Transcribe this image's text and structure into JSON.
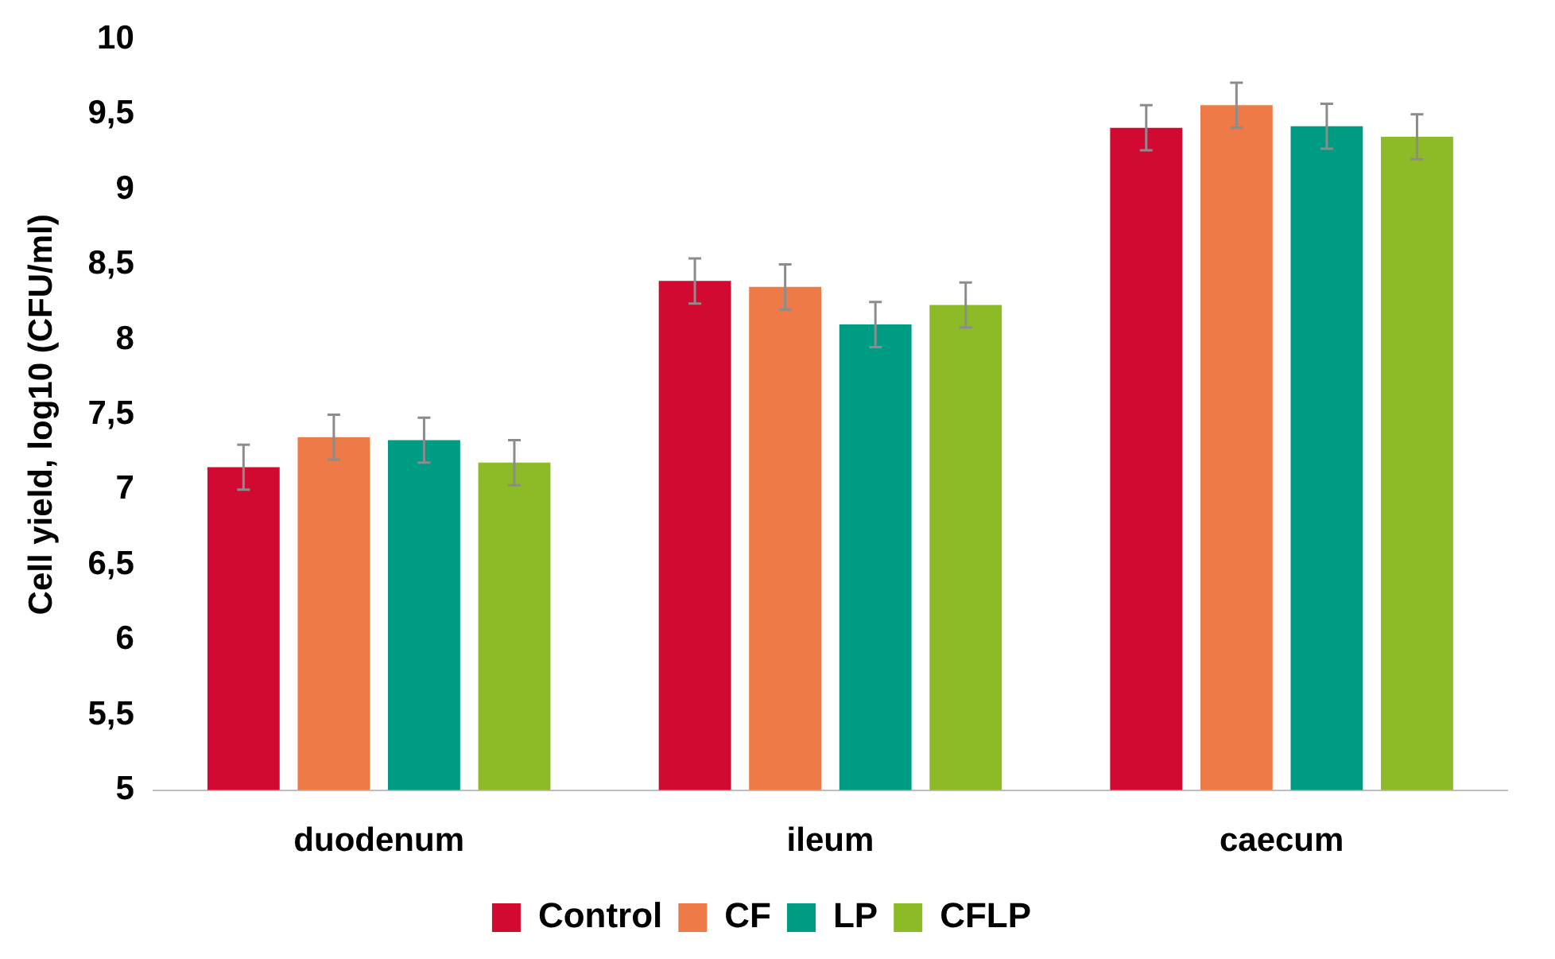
{
  "chart_data": {
    "type": "bar",
    "ylabel": "Cell yield, log10 (CFU/ml)",
    "categories": [
      "duodenum",
      "ileum",
      "caecum"
    ],
    "series": [
      {
        "name": "Control",
        "color": "#d20a32",
        "values": [
          7.15,
          8.39,
          9.41
        ],
        "errors": [
          0.15,
          0.15,
          0.15
        ]
      },
      {
        "name": "CF",
        "color": "#ee7b47",
        "values": [
          7.35,
          8.35,
          9.56
        ],
        "errors": [
          0.15,
          0.15,
          0.15
        ]
      },
      {
        "name": "LP",
        "color": "#009b83",
        "values": [
          7.33,
          8.1,
          9.42
        ],
        "errors": [
          0.15,
          0.15,
          0.15
        ]
      },
      {
        "name": "CFLP",
        "color": "#8dbb27",
        "values": [
          7.18,
          8.23,
          9.35
        ],
        "errors": [
          0.15,
          0.15,
          0.15
        ]
      }
    ],
    "ylim": [
      5,
      10
    ],
    "yticks": [
      5,
      {
        "value": 5.5,
        "label": "5,5"
      },
      6,
      {
        "value": 6.5,
        "label": "6,5"
      },
      7,
      {
        "value": 7.5,
        "label": "7,5"
      },
      8,
      {
        "value": 8.5,
        "label": "8,5"
      },
      9,
      {
        "value": 9.5,
        "label": "9,5"
      },
      10
    ],
    "grid": false,
    "legend": "bottom"
  }
}
